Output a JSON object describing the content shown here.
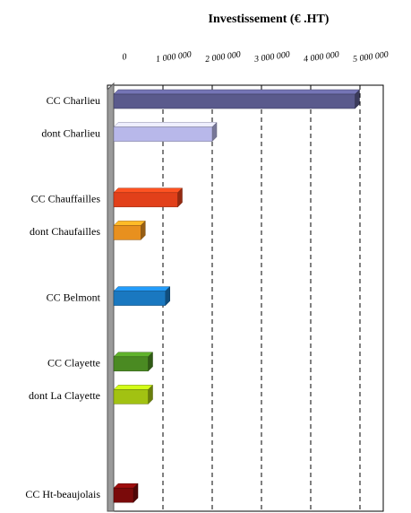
{
  "chart_data": {
    "type": "hbar",
    "title": "Investissement (€ .HT)",
    "categories": [
      "CC Charlieu",
      "dont Charlieu",
      null,
      "CC Chauffailles",
      "dont Chaufailles",
      null,
      "CC Belmont",
      null,
      "CC Clayette",
      "dont La Clayette",
      null,
      null,
      "CC Ht-beaujolais"
    ],
    "values": [
      4900000,
      2000000,
      null,
      1300000,
      550000,
      null,
      1050000,
      null,
      700000,
      700000,
      null,
      null,
      400000
    ],
    "colors": [
      "#5a5a8c",
      "#b8b8ea",
      null,
      "#e2401a",
      "#e8901e",
      null,
      "#1a78c0",
      null,
      "#4a8a22",
      "#a2c212",
      null,
      null,
      "#7a0a0a"
    ],
    "xlim": [
      0,
      5000000
    ],
    "xticks": [
      0,
      {
        "value": 1000000,
        "label": "1 000 000"
      },
      {
        "value": 2000000,
        "label": "2 000 000"
      },
      {
        "value": 3000000,
        "label": "3 000 000"
      },
      {
        "value": 4000000,
        "label": "4 000 000"
      },
      {
        "value": 5000000,
        "label": "5 000 000"
      }
    ],
    "grid": true
  }
}
